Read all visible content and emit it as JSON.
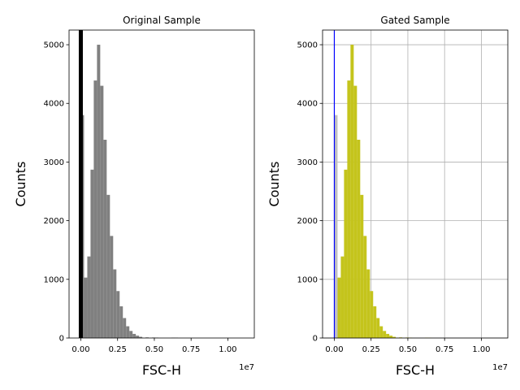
{
  "chart_data": [
    {
      "type": "bar",
      "title": "Original Sample",
      "xlabel": "FSC-H",
      "ylabel": "Counts",
      "x_offset_label": "1e7",
      "xlim": [
        -0.08,
        1.18
      ],
      "ylim": [
        0,
        5250
      ],
      "grid": false,
      "bar_color": "#808080",
      "x_ticks": [
        0.0,
        0.25,
        0.5,
        0.75,
        1.0
      ],
      "x_tick_labels": [
        "0.00",
        "0.25",
        "0.50",
        "0.75",
        "1.00"
      ],
      "y_ticks": [
        0,
        1000,
        2000,
        3000,
        4000,
        5000
      ],
      "y_tick_labels": [
        "0",
        "1000",
        "2000",
        "3000",
        "4000",
        "5000"
      ],
      "bin_width": 0.022,
      "bin_starts": [
        0.0,
        0.022,
        0.044,
        0.066,
        0.088,
        0.11,
        0.132,
        0.154,
        0.176,
        0.198,
        0.22,
        0.242,
        0.264,
        0.286,
        0.308,
        0.33,
        0.352,
        0.374,
        0.396,
        0.44,
        0.484,
        0.506,
        0.616,
        0.638
      ],
      "values": [
        3800,
        1030,
        1390,
        2870,
        4390,
        5000,
        4300,
        3380,
        2440,
        1740,
        1170,
        800,
        540,
        340,
        200,
        120,
        70,
        40,
        20,
        10,
        8,
        6,
        5,
        4
      ],
      "marker_line": {
        "x": 0.0,
        "color": "#000000"
      }
    },
    {
      "type": "bar",
      "title": "Gated Sample",
      "xlabel": "FSC-H",
      "ylabel": "Counts",
      "x_offset_label": "1e7",
      "xlim": [
        -0.08,
        1.18
      ],
      "ylim": [
        0,
        5250
      ],
      "grid": true,
      "bar_color": "#c4c41c",
      "first_bin_color": "#c0c0c0",
      "x_ticks": [
        0.0,
        0.25,
        0.5,
        0.75,
        1.0
      ],
      "x_tick_labels": [
        "0.00",
        "0.25",
        "0.50",
        "0.75",
        "1.00"
      ],
      "y_ticks": [
        0,
        1000,
        2000,
        3000,
        4000,
        5000
      ],
      "y_tick_labels": [
        "0",
        "1000",
        "2000",
        "3000",
        "4000",
        "5000"
      ],
      "bin_width": 0.022,
      "bin_starts": [
        0.0,
        0.022,
        0.044,
        0.066,
        0.088,
        0.11,
        0.132,
        0.154,
        0.176,
        0.198,
        0.22,
        0.242,
        0.264,
        0.286,
        0.308,
        0.33,
        0.352,
        0.374,
        0.396,
        0.44,
        0.484,
        0.506,
        0.616,
        0.638
      ],
      "values": [
        3800,
        1030,
        1390,
        2870,
        4390,
        5000,
        4300,
        3380,
        2440,
        1740,
        1170,
        800,
        540,
        340,
        200,
        120,
        70,
        40,
        20,
        10,
        8,
        6,
        5,
        4
      ],
      "marker_line": {
        "x": 0.0,
        "color": "#0000ff"
      }
    }
  ]
}
